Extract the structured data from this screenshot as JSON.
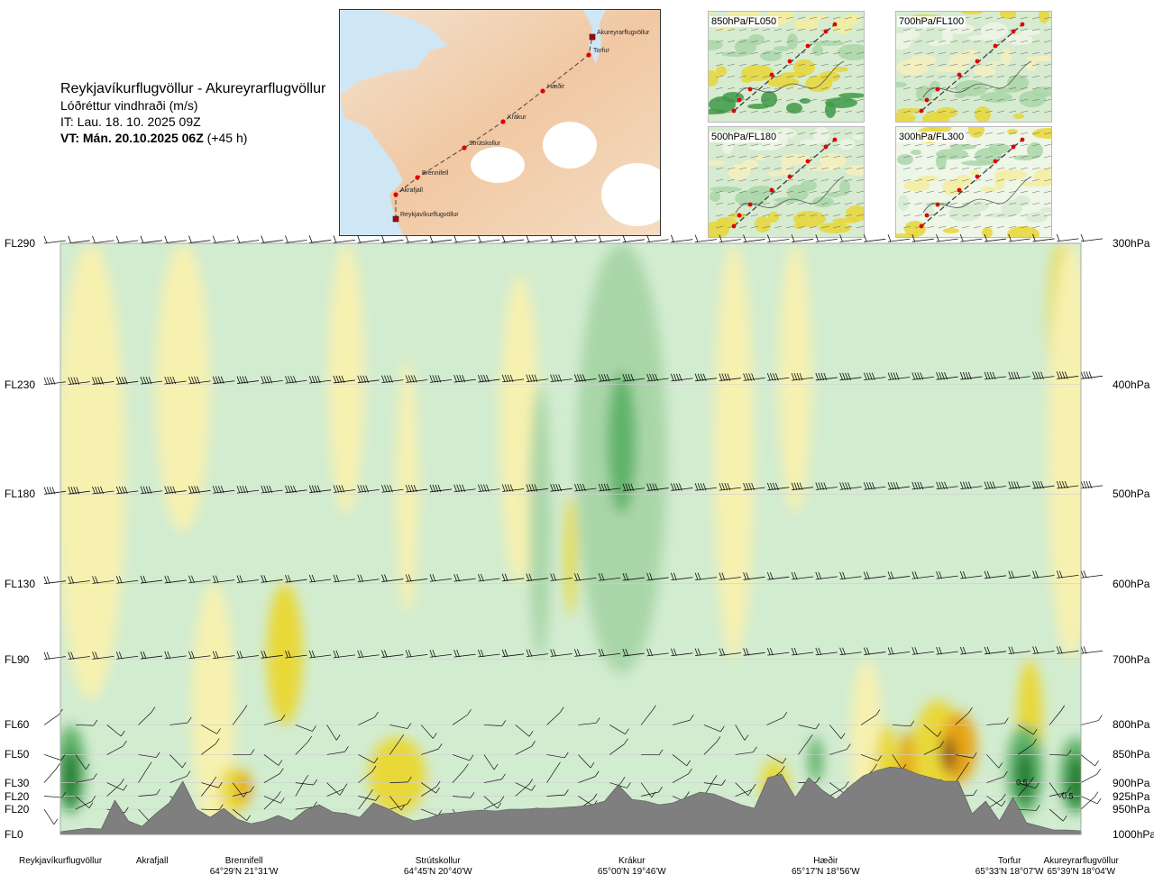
{
  "header": {
    "title": "Reykjavíkurflugvöllur - Akureyrarflugvöllur",
    "subtitle": "Lóðréttur vindhraði (m/s)",
    "init_time": "IT: Lau. 18. 10. 2025 09Z",
    "valid_label": "VT: Mán. 20.10.2025 06Z",
    "valid_offset": "(+45 h)"
  },
  "route_map": {
    "waypoints": [
      "Reykjavíkurflugvöllur",
      "Akrafjall",
      "Brennifell",
      "Strútskollur",
      "Krákur",
      "Hæðir",
      "Torfur",
      "Akureyrarflugvöllur"
    ]
  },
  "mini_maps": [
    {
      "label": "850hPa/FL050"
    },
    {
      "label": "700hPa/FL100"
    },
    {
      "label": "500hPa/FL180"
    },
    {
      "label": "300hPa/FL300"
    }
  ],
  "colors": {
    "strong_down": "#1e7a2e",
    "down": "#5fb36a",
    "weak_down": "#a9d6a8",
    "neutral_down": "#d2ecd0",
    "neutral_up": "#f7f1b0",
    "up": "#e9d838",
    "strong_up": "#e6a514",
    "very_strong_up": "#8a4a1c",
    "terrain": "#7f7f7f"
  },
  "chart_data": {
    "type": "heatmap",
    "title": "Lóðréttur vindhraði (m/s)",
    "left_axis_labels": [
      "FL290",
      "FL230",
      "FL180",
      "FL130",
      "FL90",
      "FL60",
      "FL50",
      "FL30",
      "FL20",
      "FL20",
      "FL0"
    ],
    "right_axis_labels": [
      "300hPa",
      "400hPa",
      "500hPa",
      "600hPa",
      "700hPa",
      "800hPa",
      "850hPa",
      "900hPa",
      "925hPa",
      "950hPa",
      "1000hPa"
    ],
    "pressure_levels_hpa": [
      300,
      400,
      500,
      600,
      700,
      800,
      850,
      900,
      925,
      950,
      1000
    ],
    "locations": [
      {
        "name": "Reykjavíkurflugvöllur",
        "coord": "",
        "frac": 0.0
      },
      {
        "name": "Akrafjall",
        "coord": "",
        "frac": 0.09
      },
      {
        "name": "Brennifell",
        "coord": "64°29'N 21°31'W",
        "frac": 0.18
      },
      {
        "name": "Strútskollur",
        "coord": "64°45'N 20°40'W",
        "frac": 0.37
      },
      {
        "name": "Krákur",
        "coord": "65°00'N 19°46'W",
        "frac": 0.56
      },
      {
        "name": "Hæðir",
        "coord": "65°17'N 18°56'W",
        "frac": 0.75
      },
      {
        "name": "Torfur",
        "coord": "65°33'N 18°07'W",
        "frac": 0.93
      },
      {
        "name": "Akureyrarflugvöllur",
        "coord": "65°39'N 18°04'W",
        "frac": 1.0
      }
    ],
    "annotations": [
      "0.5",
      "0.5"
    ],
    "terrain_height_m": [
      0,
      20,
      40,
      30,
      350,
      120,
      60,
      200,
      320,
      560,
      250,
      160,
      260,
      140,
      90,
      120,
      180,
      120,
      240,
      300,
      220,
      200,
      160,
      320,
      260,
      180,
      120,
      150,
      200,
      210,
      230,
      240,
      230,
      250,
      250,
      260,
      260,
      270,
      280,
      300,
      340,
      520,
      360,
      340,
      300,
      320,
      380,
      440,
      420,
      360,
      300,
      260,
      600,
      640,
      380,
      600,
      460,
      360,
      500,
      620,
      680,
      720,
      700,
      640,
      600,
      560,
      560,
      200,
      340,
      120,
      380,
      100,
      60,
      20,
      20,
      10
    ]
  }
}
